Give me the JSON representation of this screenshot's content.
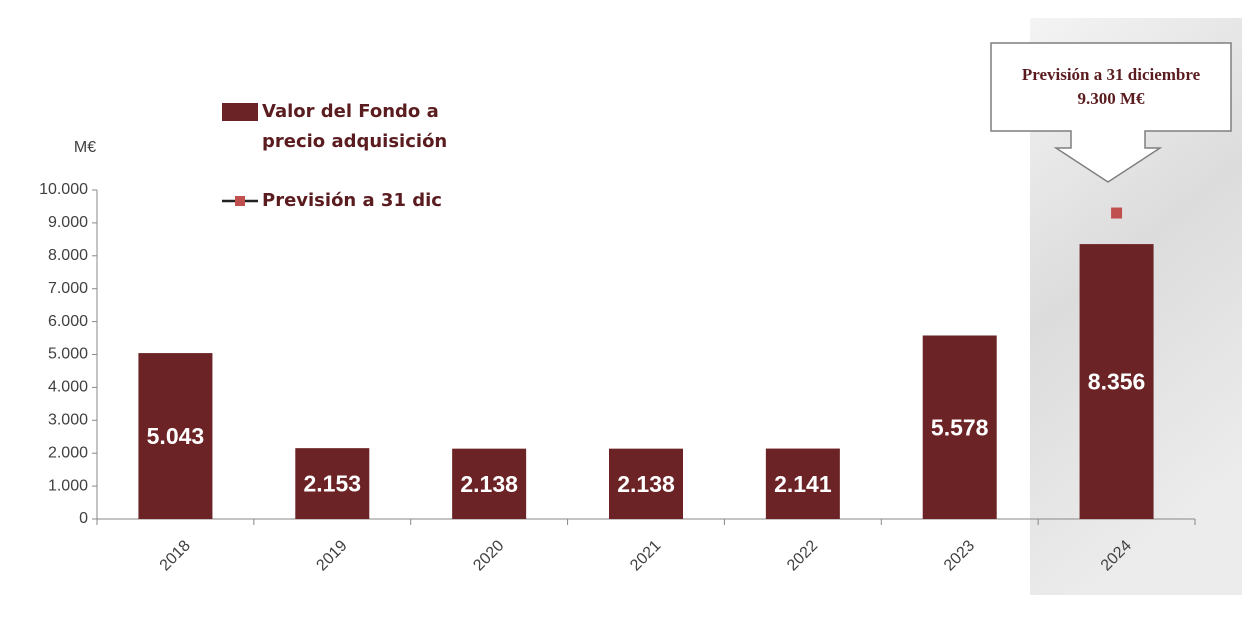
{
  "chart_data": {
    "type": "bar",
    "y_unit_label": "M€",
    "categories": [
      "2018",
      "2019",
      "2020",
      "2021",
      "2022",
      "2023",
      "2024"
    ],
    "series": [
      {
        "name": "Valor del Fondo a precio adquisición",
        "color": "#6b2326",
        "type": "bar",
        "values": [
          5043,
          2153,
          2138,
          2138,
          2141,
          5578,
          8356
        ],
        "value_labels": [
          "5.043",
          "2.153",
          "2.138",
          "2.138",
          "2.141",
          "5.578",
          "8.356"
        ]
      },
      {
        "name": "Previsión a 31 dic",
        "color": "#c0504d",
        "type": "point",
        "values": [
          null,
          null,
          null,
          null,
          null,
          null,
          9300
        ]
      }
    ],
    "annotation": [
      "Previsión a 31 diciembre",
      "9.300 M€"
    ],
    "ylim": [
      0,
      10000
    ],
    "yticks": [
      0,
      {
        "value": 1000,
        "label": "1.000"
      },
      {
        "value": 2000,
        "label": "2.000"
      },
      {
        "value": 3000,
        "label": "3.000"
      },
      {
        "value": 4000,
        "label": "4.000"
      },
      {
        "value": 5000,
        "label": "5.000"
      },
      {
        "value": 6000,
        "label": "6.000"
      },
      {
        "value": 7000,
        "label": "7.000"
      },
      {
        "value": 8000,
        "label": "8.000"
      },
      {
        "value": 9000,
        "label": "9.000"
      },
      {
        "value": 10000,
        "label": "10.000"
      }
    ],
    "grid": false
  }
}
